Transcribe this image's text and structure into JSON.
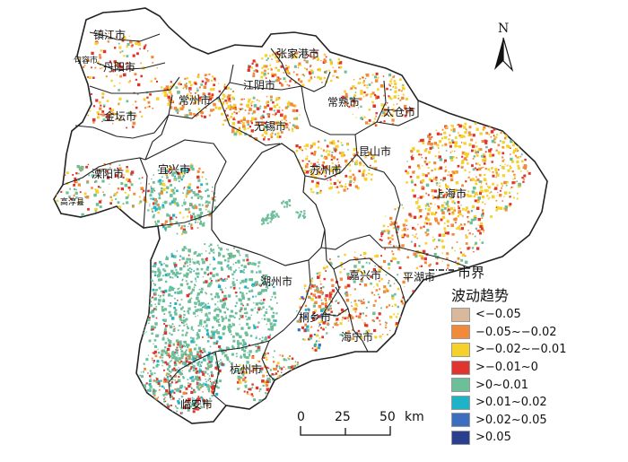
{
  "map": {
    "cities": [
      {
        "id": "zhenjiang",
        "name": "镇江市"
      },
      {
        "id": "danyang",
        "name": "丹阳市"
      },
      {
        "id": "jurong",
        "name": "句容市"
      },
      {
        "id": "jintan",
        "name": "金坛市"
      },
      {
        "id": "changzhou",
        "name": "常州市"
      },
      {
        "id": "jiangyin",
        "name": "江阴市"
      },
      {
        "id": "zhangjiagang",
        "name": "张家港市"
      },
      {
        "id": "changshu",
        "name": "常熟市"
      },
      {
        "id": "taicang",
        "name": "太仓市"
      },
      {
        "id": "wuxi",
        "name": "无锡市"
      },
      {
        "id": "suzhou",
        "name": "苏州市"
      },
      {
        "id": "kunshan",
        "name": "昆山市"
      },
      {
        "id": "shanghai",
        "name": "上海市"
      },
      {
        "id": "liyang",
        "name": "溧阳市"
      },
      {
        "id": "yixing",
        "name": "宜兴市"
      },
      {
        "id": "gaochun",
        "name": "高淳县"
      },
      {
        "id": "huzhou",
        "name": "湖州市"
      },
      {
        "id": "jiaxing",
        "name": "嘉兴市"
      },
      {
        "id": "pinghu",
        "name": "平湖市"
      },
      {
        "id": "tongxiang",
        "name": "桐乡市"
      },
      {
        "id": "haining",
        "name": "海宁市"
      },
      {
        "id": "hangzhou",
        "name": "杭州市"
      },
      {
        "id": "linan",
        "name": "临安市"
      }
    ]
  },
  "north_arrow": {
    "label": "N"
  },
  "scale_bar": {
    "ticks": [
      "0",
      "25",
      "50"
    ],
    "unit": "km"
  },
  "legend": {
    "boundary_label": "市界",
    "title": "波动趋势",
    "items": [
      {
        "label": "<−0.05",
        "color": "#d9b99b"
      },
      {
        "label": "−0.05~−0.02",
        "color": "#f28a3c"
      },
      {
        "label": ">−0.02~−0.01",
        "color": "#f5d12a"
      },
      {
        "label": ">−0.01~0",
        "color": "#e0352f"
      },
      {
        "label": ">0~0.01",
        "color": "#6dbf9a"
      },
      {
        "label": ">0.01~0.02",
        "color": "#1fb3c8"
      },
      {
        "label": ">0.02~0.05",
        "color": "#3d6fc0"
      },
      {
        "label": ">0.05",
        "color": "#2b3f8f"
      }
    ]
  }
}
